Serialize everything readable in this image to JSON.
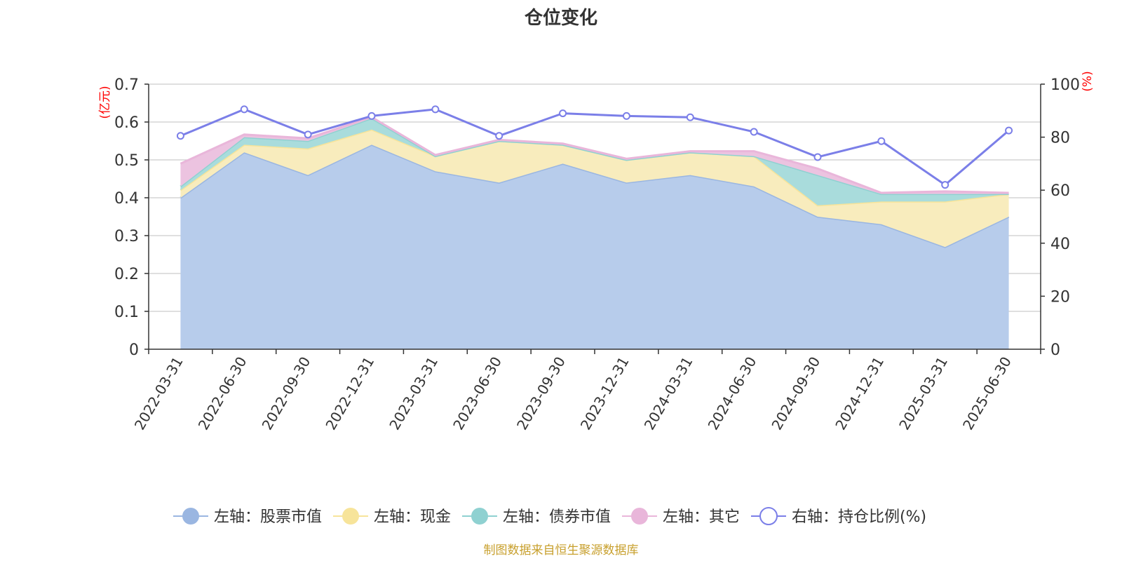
{
  "chart_data": {
    "type": "area",
    "title": "仓位变化",
    "categories": [
      "2022-03-31",
      "2022-06-30",
      "2022-09-30",
      "2022-12-31",
      "2023-03-31",
      "2023-06-30",
      "2023-09-30",
      "2023-12-31",
      "2024-03-31",
      "2024-06-30",
      "2024-09-30",
      "2024-12-31",
      "2025-03-31",
      "2025-06-30"
    ],
    "left_axis": {
      "unit": "(亿元)",
      "ylim": [
        0,
        0.7
      ],
      "ticks": [
        "0",
        "0.1",
        "0.2",
        "0.3",
        "0.4",
        "0.5",
        "0.6",
        "0.7"
      ]
    },
    "right_axis": {
      "unit": "(%)",
      "ylim": [
        0,
        100
      ],
      "ticks": [
        "0",
        "20",
        "40",
        "60",
        "80",
        "100"
      ]
    },
    "grid": true,
    "legend_position": "bottom",
    "series": [
      {
        "name": "左轴：股票市值",
        "axis": "left",
        "stacked": true,
        "color": "#9ab6e1",
        "fill": "#b7cceb",
        "values": [
          0.4,
          0.52,
          0.46,
          0.54,
          0.47,
          0.44,
          0.49,
          0.44,
          0.46,
          0.43,
          0.35,
          0.33,
          0.27,
          0.35
        ]
      },
      {
        "name": "左轴：现金",
        "axis": "left",
        "stacked": true,
        "color": "#f7e49a",
        "fill": "#f8ecbd",
        "values": [
          0.02,
          0.02,
          0.07,
          0.04,
          0.04,
          0.11,
          0.05,
          0.06,
          0.06,
          0.08,
          0.03,
          0.06,
          0.12,
          0.06
        ]
      },
      {
        "name": "左轴：债券市值",
        "axis": "left",
        "stacked": true,
        "color": "#8fd1d1",
        "fill": "#a9dcdc",
        "values": [
          0.01,
          0.02,
          0.02,
          0.03,
          0.0,
          0.0,
          0.0,
          0.0,
          0.0,
          0.0,
          0.08,
          0.02,
          0.02,
          0.0
        ]
      },
      {
        "name": "左轴：其它",
        "axis": "left",
        "stacked": true,
        "color": "#e9b6da",
        "fill": "#ecc3e0",
        "values": [
          0.06,
          0.007,
          0.007,
          0.003,
          0.003,
          0.003,
          0.003,
          0.003,
          0.003,
          0.013,
          0.017,
          0.003,
          0.007,
          0.003
        ]
      },
      {
        "name": "右轴：持仓比例(%)",
        "axis": "right",
        "type": "line",
        "color": "#7b7fe8",
        "values": [
          80.5,
          90.5,
          81.0,
          88.0,
          90.5,
          80.5,
          89.0,
          88.0,
          87.5,
          82.0,
          72.5,
          78.5,
          62.0,
          82.5
        ]
      }
    ],
    "source_note": "制图数据来自恒生聚源数据库"
  }
}
